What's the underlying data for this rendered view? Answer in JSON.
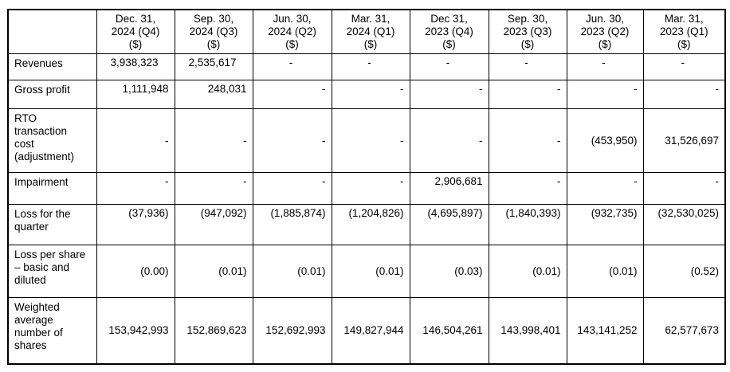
{
  "table": {
    "border_color": "#000000",
    "text_color": "#000000",
    "background": "#ffffff",
    "header": {
      "corner": "",
      "columns": [
        "Dec. 31,\n2024 (Q4)\n($)",
        "Sep. 30,\n2024 (Q3)\n($)",
        "Jun. 30,\n2024 (Q2)\n($)",
        "Mar. 31,\n2024 (Q1)\n($)",
        "Dec 31,\n2023 (Q4)\n($)",
        "Sep. 30,\n2023 (Q3)\n($)",
        "Jun. 30,\n2023 (Q2)\n($)",
        "Mar. 31,\n2023 (Q1)\n($)"
      ]
    },
    "rows": [
      {
        "label": "Revenues",
        "align": "center",
        "valign": "top",
        "height": 33,
        "values": [
          "3,938,323",
          "2,535,617",
          "-",
          "-",
          "-",
          "-",
          "-",
          "-"
        ]
      },
      {
        "label": "Gross profit",
        "align": "right",
        "valign": "top",
        "height": 36,
        "values": [
          "1,111,948",
          "248,031",
          "-",
          "-",
          "-",
          "-",
          "-",
          "-"
        ]
      },
      {
        "label": "RTO transaction cost (adjustment)",
        "align": "right",
        "valign": "middle",
        "height": 80,
        "values": [
          "-",
          "-",
          "-",
          "-",
          "-",
          "-",
          "(453,950)",
          "31,526,697"
        ]
      },
      {
        "label": "Impairment",
        "align": "right",
        "valign": "top",
        "height": 40,
        "values": [
          "-",
          "-",
          "-",
          "-",
          "2,906,681",
          "-",
          "-",
          "-"
        ]
      },
      {
        "label": "Loss for the quarter",
        "align": "right",
        "valign": "top",
        "height": 51,
        "values": [
          "(37,936)",
          "(947,092)",
          "(1,885,874)",
          "(1,204,826)",
          "(4,695,897)",
          "(1,840,393)",
          "(932,735)",
          "(32,530,025)"
        ]
      },
      {
        "label": "Loss per share – basic and diluted",
        "align": "right",
        "valign": "middle",
        "height": 66,
        "values": [
          "(0.00)",
          "(0.01)",
          "(0.01)",
          "(0.01)",
          "(0.03)",
          "(0.01)",
          "(0.01)",
          "(0.52)"
        ]
      },
      {
        "label": "Weighted average number of shares",
        "align": "right",
        "valign": "middle",
        "height": 83,
        "values": [
          "153,942,993",
          "152,869,623",
          "152,692,993",
          "149,827,944",
          "146,504,261",
          "143,998,401",
          "143,141,252",
          "62,577,673"
        ]
      }
    ]
  }
}
